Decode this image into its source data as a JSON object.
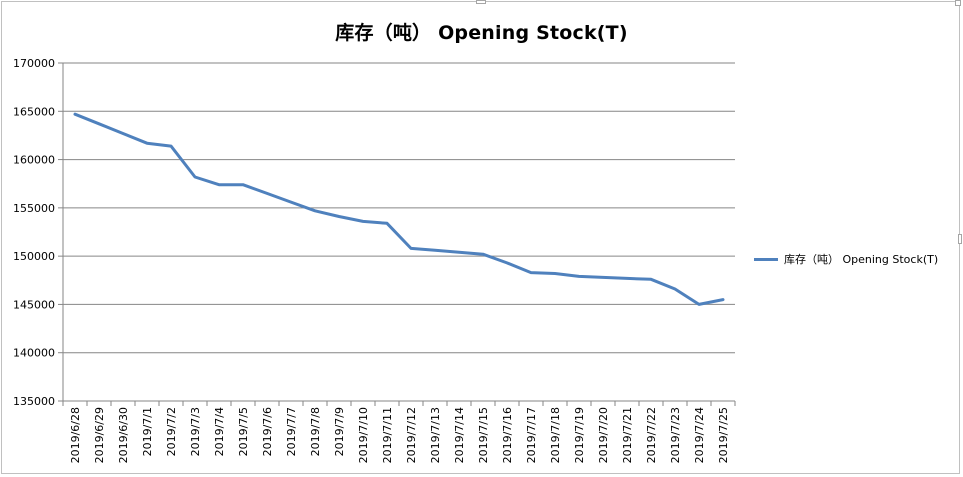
{
  "chart_data": {
    "type": "line",
    "title": "库存（吨） Opening Stock(T)",
    "ylim": [
      135000,
      170000
    ],
    "ytick_step": 5000,
    "ytick_labels": [
      "135000",
      "140000",
      "145000",
      "150000",
      "155000",
      "160000",
      "165000",
      "170000"
    ],
    "categories": [
      "2019/6/28",
      "2019/6/29",
      "2019/6/30",
      "2019/7/1",
      "2019/7/2",
      "2019/7/3",
      "2019/7/4",
      "2019/7/5",
      "2019/7/6",
      "2019/7/7",
      "2019/7/8",
      "2019/7/9",
      "2019/7/10",
      "2019/7/11",
      "2019/7/12",
      "2019/7/13",
      "2019/7/14",
      "2019/7/15",
      "2019/7/16",
      "2019/7/17",
      "2019/7/18",
      "2019/7/19",
      "2019/7/20",
      "2019/7/21",
      "2019/7/22",
      "2019/7/23",
      "2019/7/24",
      "2019/7/25"
    ],
    "series": [
      {
        "name": "库存（吨） Opening Stock(T)",
        "color": "#4f81bd",
        "values": [
          164700,
          163700,
          162700,
          161700,
          161400,
          158200,
          157400,
          157400,
          156500,
          155600,
          154700,
          154100,
          153600,
          153400,
          150800,
          150600,
          150400,
          150200,
          149300,
          148300,
          148200,
          147900,
          147800,
          147700,
          147600,
          146600,
          145000,
          145500
        ]
      }
    ],
    "grid": true,
    "legend_position": "right"
  }
}
